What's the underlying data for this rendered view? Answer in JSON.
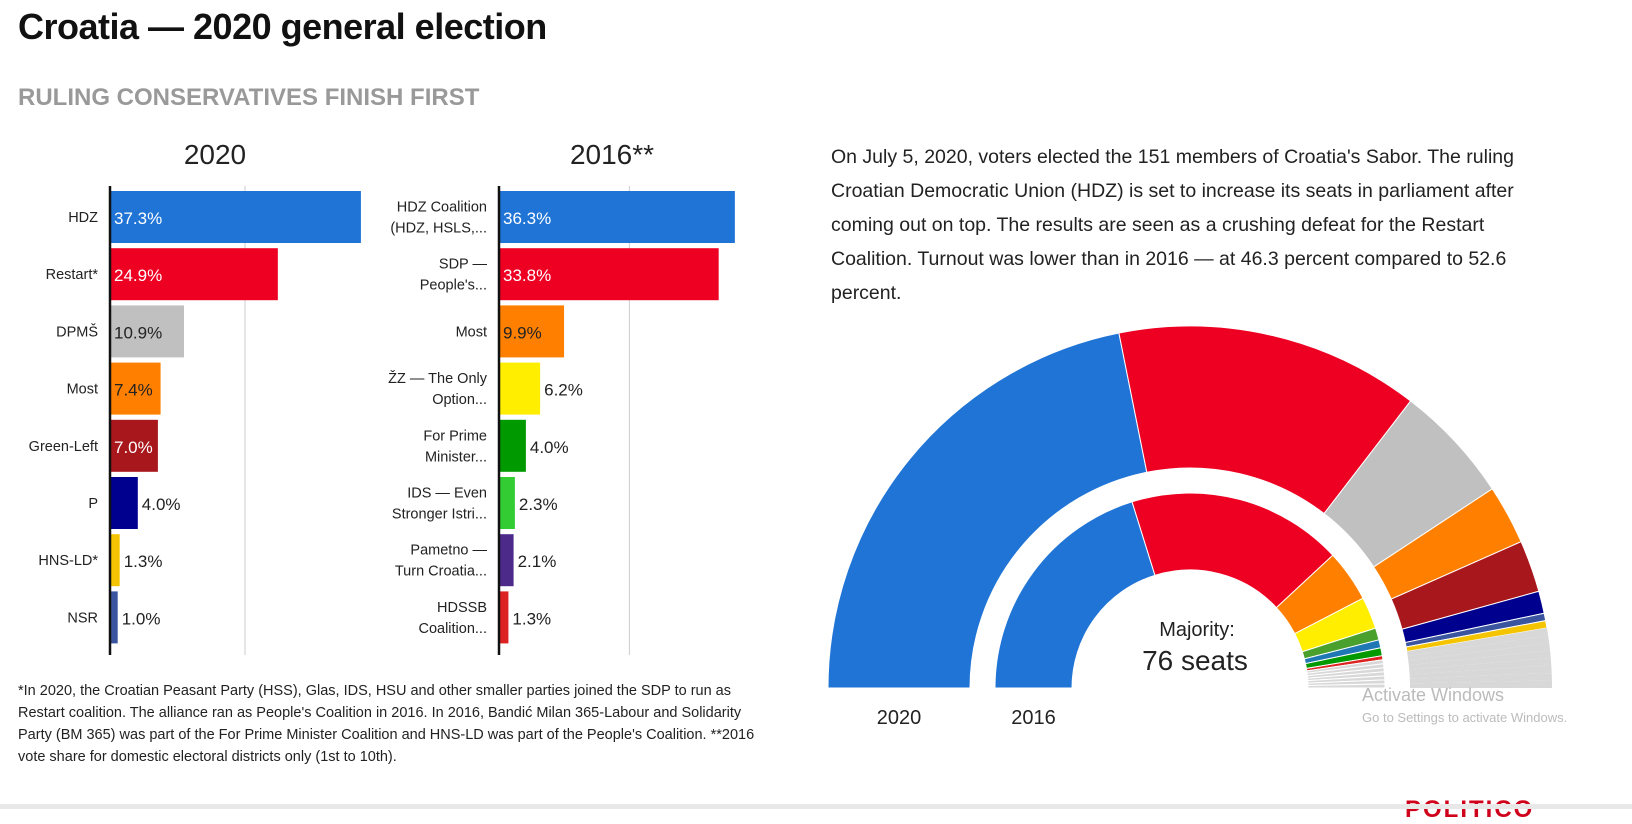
{
  "header": {
    "title": "Croatia — 2020 general election",
    "subtitle": "RULING CONSERVATIVES FINISH FIRST"
  },
  "description": "On July 5, 2020, voters elected the 151 members of Croatia's Sabor. The ruling Croatian Democratic Union (HDZ) is set to increase its seats in parliament after coming out on top. The results are seen as a crushing defeat for the Restart Coalition. Turnout was lower than in 2016 — at 46.3 percent compared to 52.6 percent.",
  "footnote": "*In 2020, the Croatian Peasant Party (HSS), Glas, IDS, HSU and other smaller parties joined the SDP to run as Restart coalition. The alliance ran as People's Coalition in 2016. In 2016, Bandić Milan 365-Labour and Solidarity Party (BM 365) was part of the For Prime Minister Coalition and HNS-LD was part of the People's Coalition. **2016 vote share for domestic electoral districts only (1st to 10th).",
  "watermark": {
    "line1": "Activate Windows",
    "line2": "Go to Settings to activate Windows."
  },
  "logo": "POLITICO",
  "chart_data": [
    {
      "type": "bar",
      "orientation": "horizontal",
      "title": "2020",
      "unit": "%",
      "xlim": [
        0,
        40
      ],
      "grid": [
        20
      ],
      "categories": [
        "HDZ",
        "Restart*",
        "DPMŠ",
        "Most",
        "Green-Left",
        "P",
        "HNS-LD*",
        "NSR"
      ],
      "values": [
        37.3,
        24.9,
        10.9,
        7.4,
        7.0,
        4.0,
        1.3,
        1.0
      ],
      "labels": [
        "37.3%",
        "24.9%",
        "10.9%",
        "7.4%",
        "7.0%",
        "4.0%",
        "1.3%",
        "1.0%"
      ],
      "colors": [
        "#1f74d6",
        "#ee0022",
        "#c0c0c0",
        "#ff8000",
        "#a8171c",
        "#00008f",
        "#f5c400",
        "#3a54a0"
      ]
    },
    {
      "type": "bar",
      "orientation": "horizontal",
      "title": "2016**",
      "unit": "%",
      "xlim": [
        0,
        40
      ],
      "grid": [
        20
      ],
      "categories": [
        [
          "HDZ Coalition",
          "(HDZ, HSLS,..."
        ],
        [
          "SDP —",
          "People's..."
        ],
        [
          "Most"
        ],
        [
          "ŽZ — The Only",
          "Option..."
        ],
        [
          "For Prime",
          "Minister..."
        ],
        [
          "IDS — Even",
          "Stronger Istri..."
        ],
        [
          "Pametno —",
          "Turn Croatia..."
        ],
        [
          "HDSSB",
          "Coalition..."
        ]
      ],
      "values": [
        36.3,
        33.8,
        9.9,
        6.2,
        4.0,
        2.3,
        2.1,
        1.3
      ],
      "labels": [
        "36.3%",
        "33.8%",
        "9.9%",
        "6.2%",
        "4.0%",
        "2.3%",
        "2.1%",
        "1.3%"
      ],
      "colors": [
        "#1f74d6",
        "#ee0022",
        "#ff8000",
        "#ffee00",
        "#009900",
        "#33cc33",
        "#4b2a8a",
        "#dd2222"
      ]
    },
    {
      "type": "pie",
      "subtype": "parliament-semicircle",
      "total_seats": 151,
      "majority_label": "Majority:",
      "majority_value": "76 seats",
      "rings": [
        {
          "name": "2020",
          "seats": [
            66,
            41,
            16,
            8,
            7,
            3,
            1,
            1,
            8
          ],
          "colors": [
            "#1f74d6",
            "#ee0022",
            "#c0c0c0",
            "#ff8000",
            "#a8171c",
            "#00008f",
            "#3a54a0",
            "#f5c400",
            "#d8d8d8"
          ]
        },
        {
          "name": "2016",
          "seats": [
            61,
            54,
            13,
            8,
            3,
            2,
            2,
            1,
            7
          ],
          "colors": [
            "#1f74d6",
            "#ee0022",
            "#ff8000",
            "#ffee00",
            "#4aa02c",
            "#1f78b4",
            "#009900",
            "#dd2222",
            "#d8d8d8"
          ]
        }
      ]
    }
  ]
}
